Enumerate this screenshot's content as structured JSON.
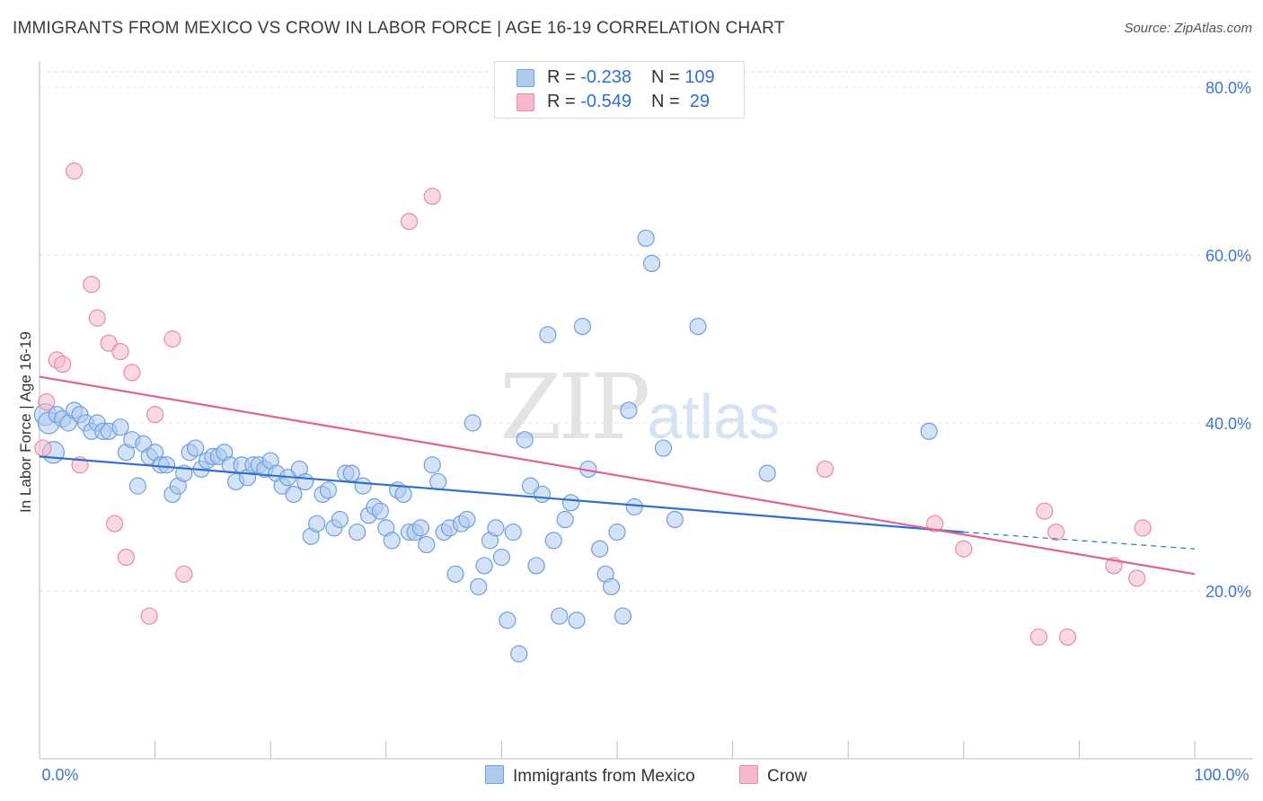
{
  "title": "IMMIGRANTS FROM MEXICO VS CROW IN LABOR FORCE | AGE 16-19 CORRELATION CHART",
  "source": "Source: ZipAtlas.com",
  "watermark": {
    "zip": "ZIP",
    "atlas": "atlas"
  },
  "legend": {
    "rows": [
      {
        "r_label": "R = ",
        "r_value": "-0.238",
        "n_label": "N = ",
        "n_value": "109",
        "color": "#aecbf0",
        "border": "#6fa0dc"
      },
      {
        "r_label": "R = ",
        "r_value": "-0.549",
        "n_label": "N = ",
        "n_value": " 29",
        "color": "#f6b8cb",
        "border": "#e98aa8"
      }
    ]
  },
  "bottom_legend": [
    {
      "label": "Immigrants from Mexico",
      "color": "#aecbf0",
      "border": "#6fa0dc"
    },
    {
      "label": "Crow",
      "color": "#f6b8cb",
      "border": "#e98aa8"
    }
  ],
  "chart_data": {
    "type": "scatter",
    "title": "IMMIGRANTS FROM MEXICO VS CROW IN LABOR FORCE | AGE 16-19 CORRELATION CHART",
    "xlabel": "",
    "ylabel": "In Labor Force | Age 16-19",
    "xlim": [
      0,
      100
    ],
    "ylim": [
      0,
      80
    ],
    "x_tick_labels": [
      "0.0%",
      "100.0%"
    ],
    "y_ticks": [
      20,
      40,
      60,
      80
    ],
    "y_tick_labels": [
      "20.0%",
      "40.0%",
      "60.0%",
      "80.0%"
    ],
    "series": [
      {
        "name": "Immigrants from Mexico",
        "color": "#6fa0dc",
        "fill": "#aecbf0",
        "trend_color": "#2f6fd0",
        "trend": {
          "x0": 0,
          "y0": 36.0,
          "x1": 80,
          "y1": 27.0,
          "dash_to_x": 100,
          "dash_to_y": 25.0
        },
        "points": [
          [
            0.5,
            41
          ],
          [
            0.8,
            40
          ],
          [
            1.2,
            36.5
          ],
          [
            1.5,
            41
          ],
          [
            2,
            40.5
          ],
          [
            2.5,
            40
          ],
          [
            3,
            41.5
          ],
          [
            3.5,
            41
          ],
          [
            4,
            40
          ],
          [
            4.5,
            39
          ],
          [
            5,
            40
          ],
          [
            5.5,
            39
          ],
          [
            6,
            39
          ],
          [
            7,
            39.5
          ],
          [
            7.5,
            36.5
          ],
          [
            8,
            38
          ],
          [
            8.5,
            32.5
          ],
          [
            9,
            37.5
          ],
          [
            9.5,
            36
          ],
          [
            10,
            36.5
          ],
          [
            10.5,
            35
          ],
          [
            11,
            35
          ],
          [
            11.5,
            31.5
          ],
          [
            12,
            32.5
          ],
          [
            12.5,
            34
          ],
          [
            13,
            36.5
          ],
          [
            13.5,
            37
          ],
          [
            14,
            34.5
          ],
          [
            14.5,
            35.5
          ],
          [
            15,
            36
          ],
          [
            15.5,
            36
          ],
          [
            16,
            36.5
          ],
          [
            16.5,
            35
          ],
          [
            17,
            33
          ],
          [
            17.5,
            35
          ],
          [
            18,
            33.5
          ],
          [
            18.5,
            35
          ],
          [
            19,
            35
          ],
          [
            19.5,
            34.5
          ],
          [
            20,
            35.5
          ],
          [
            20.5,
            34
          ],
          [
            21,
            32.5
          ],
          [
            21.5,
            33.5
          ],
          [
            22,
            31.5
          ],
          [
            22.5,
            34.5
          ],
          [
            23,
            33
          ],
          [
            23.5,
            26.5
          ],
          [
            24,
            28
          ],
          [
            24.5,
            31.5
          ],
          [
            25,
            32
          ],
          [
            25.5,
            27.5
          ],
          [
            26,
            28.5
          ],
          [
            26.5,
            34
          ],
          [
            27,
            34
          ],
          [
            27.5,
            27
          ],
          [
            28,
            32.5
          ],
          [
            28.5,
            29
          ],
          [
            29,
            30
          ],
          [
            29.5,
            29.5
          ],
          [
            30,
            27.5
          ],
          [
            30.5,
            26
          ],
          [
            31,
            32
          ],
          [
            31.5,
            31.5
          ],
          [
            32,
            27
          ],
          [
            32.5,
            27
          ],
          [
            33,
            27.5
          ],
          [
            33.5,
            25.5
          ],
          [
            34,
            35
          ],
          [
            34.5,
            33
          ],
          [
            35,
            27
          ],
          [
            35.5,
            27.5
          ],
          [
            36,
            22
          ],
          [
            36.5,
            28
          ],
          [
            37,
            28.5
          ],
          [
            37.5,
            40
          ],
          [
            38,
            20.5
          ],
          [
            38.5,
            23
          ],
          [
            39,
            26
          ],
          [
            39.5,
            27.5
          ],
          [
            40,
            24
          ],
          [
            40.5,
            16.5
          ],
          [
            41,
            27
          ],
          [
            41.5,
            12.5
          ],
          [
            42,
            38
          ],
          [
            42.5,
            32.5
          ],
          [
            43,
            23
          ],
          [
            43.5,
            31.5
          ],
          [
            44,
            50.5
          ],
          [
            44.5,
            26
          ],
          [
            45,
            17
          ],
          [
            45.5,
            28.5
          ],
          [
            46,
            30.5
          ],
          [
            46.5,
            16.5
          ],
          [
            47,
            51.5
          ],
          [
            47.5,
            34.5
          ],
          [
            48.5,
            25
          ],
          [
            49,
            22
          ],
          [
            49.5,
            20.5
          ],
          [
            50,
            27
          ],
          [
            50.5,
            17
          ],
          [
            51,
            41.5
          ],
          [
            51.5,
            30
          ],
          [
            52.5,
            62
          ],
          [
            53,
            59
          ],
          [
            54,
            37
          ],
          [
            55,
            28.5
          ],
          [
            57,
            51.5
          ],
          [
            63,
            34
          ],
          [
            77,
            39
          ]
        ]
      },
      {
        "name": "Crow",
        "color": "#e98aa8",
        "fill": "#f6b8cb",
        "trend_color": "#e0628f",
        "trend": {
          "x0": 0,
          "y0": 45.5,
          "x1": 100,
          "y1": 22.0
        },
        "points": [
          [
            0.3,
            37
          ],
          [
            0.6,
            42.5
          ],
          [
            1.5,
            47.5
          ],
          [
            2,
            47
          ],
          [
            3,
            70
          ],
          [
            3.5,
            35
          ],
          [
            4.5,
            56.5
          ],
          [
            5,
            52.5
          ],
          [
            6,
            49.5
          ],
          [
            6.5,
            28
          ],
          [
            7,
            48.5
          ],
          [
            7.5,
            24
          ],
          [
            8,
            46
          ],
          [
            9.5,
            17
          ],
          [
            10,
            41
          ],
          [
            11.5,
            50
          ],
          [
            12.5,
            22
          ],
          [
            32,
            64
          ],
          [
            34,
            67
          ],
          [
            68,
            34.5
          ],
          [
            77.5,
            28
          ],
          [
            80,
            25
          ],
          [
            86.5,
            14.5
          ],
          [
            87,
            29.5
          ],
          [
            88,
            27
          ],
          [
            89,
            14.5
          ],
          [
            93,
            23
          ],
          [
            95,
            21.5
          ],
          [
            95.5,
            27.5
          ]
        ]
      }
    ]
  }
}
